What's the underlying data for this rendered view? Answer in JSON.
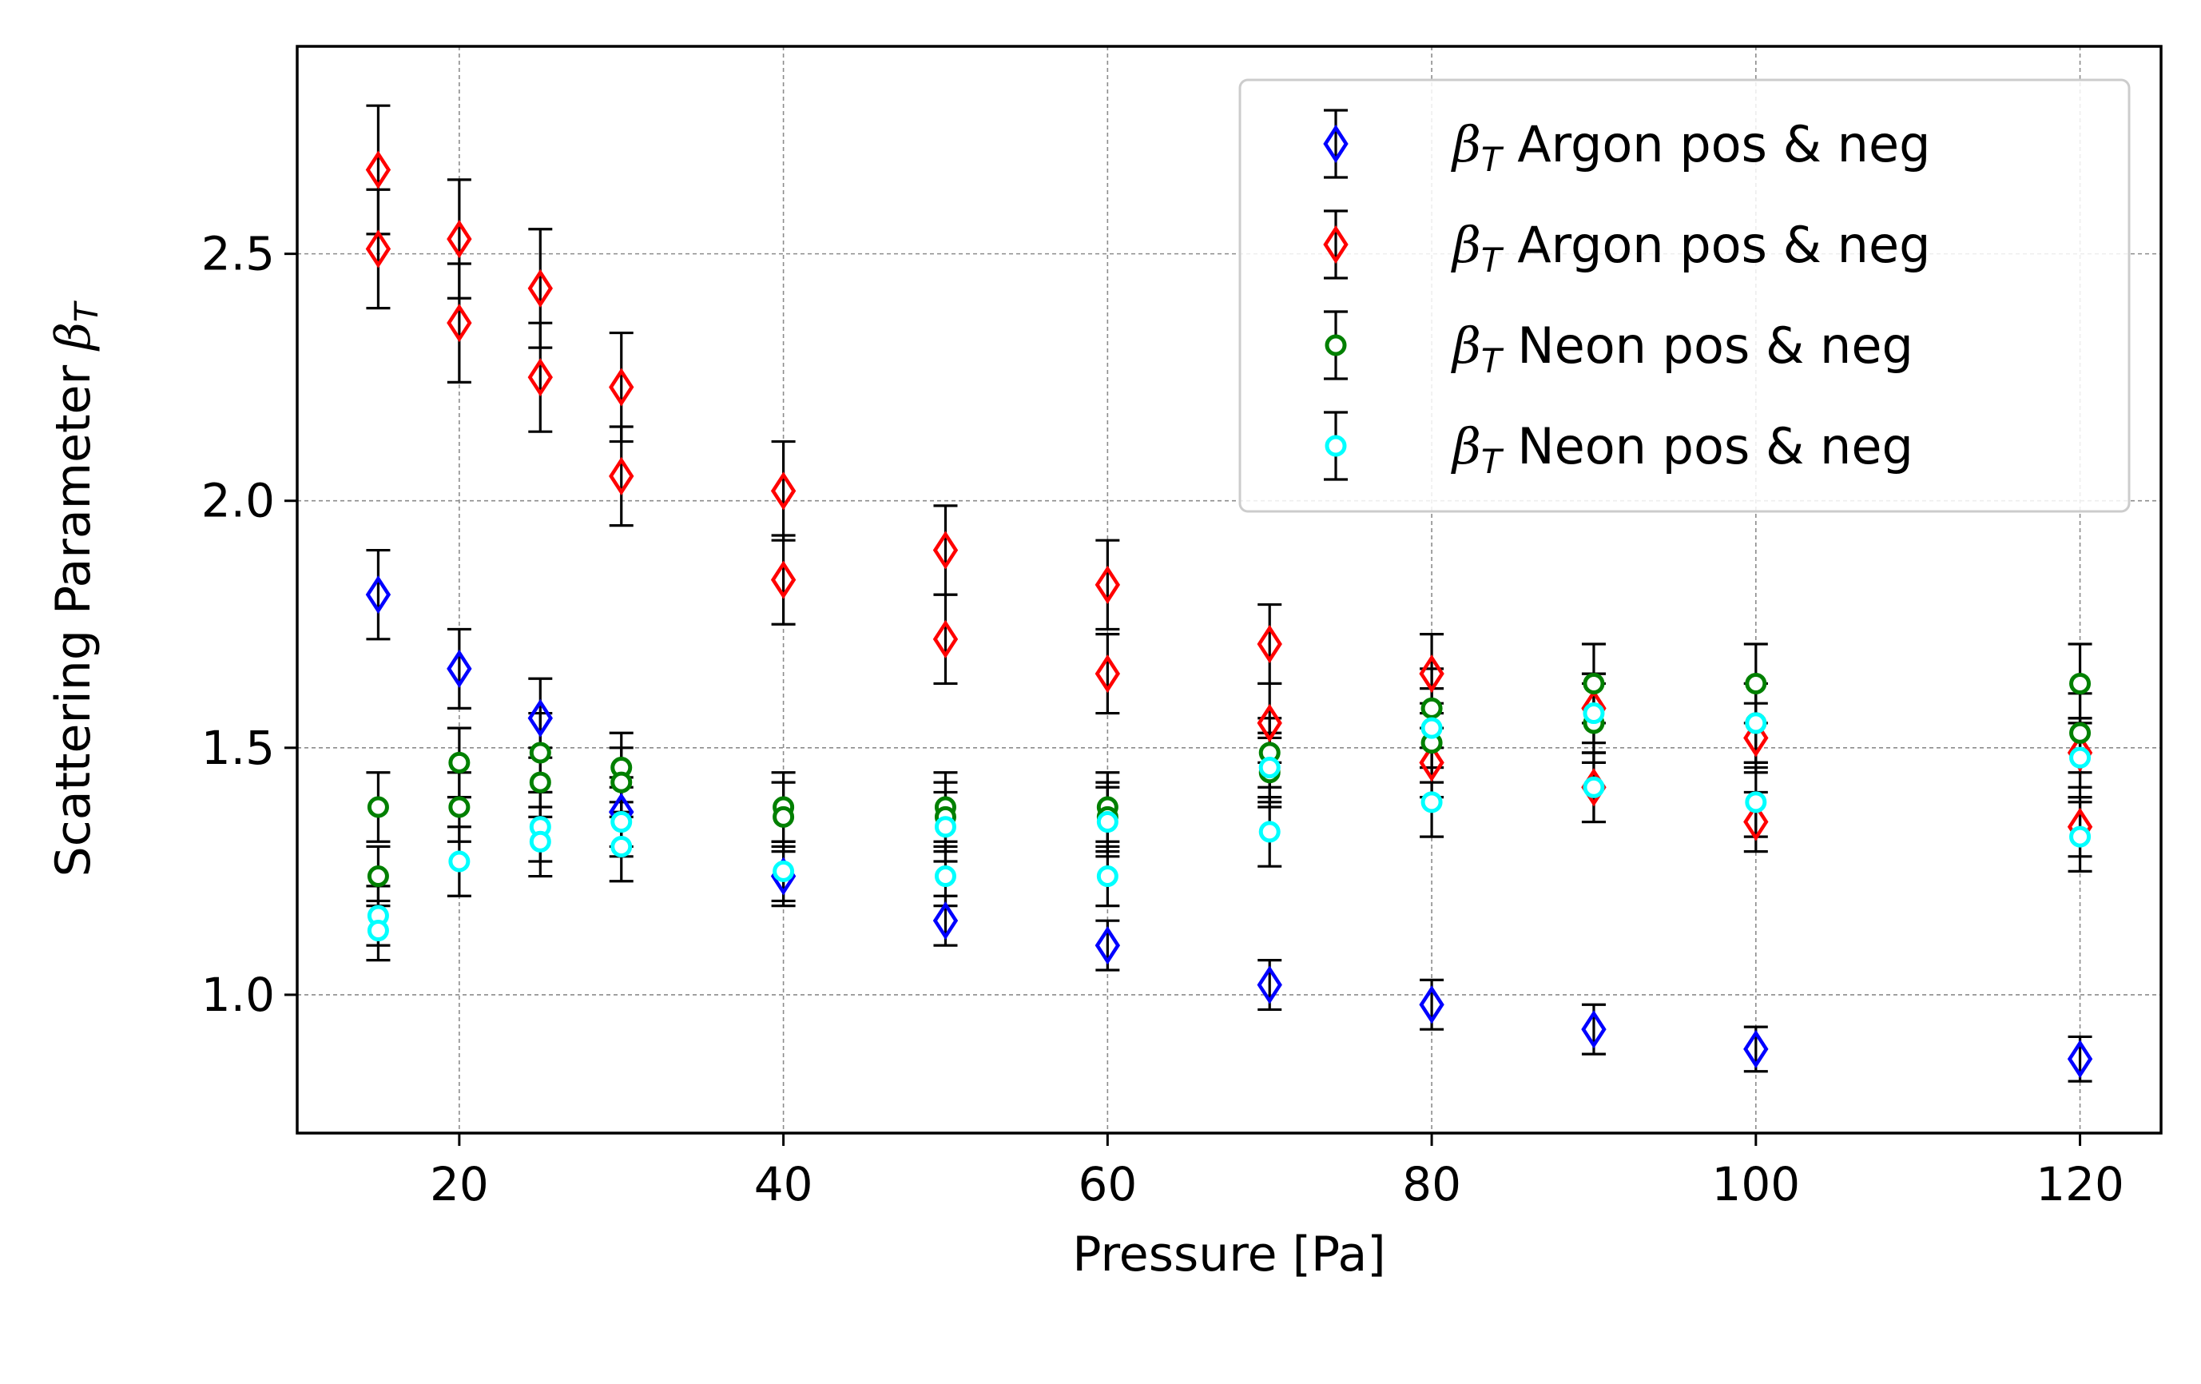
{
  "chart_data": {
    "type": "scatter",
    "xlabel": "Pressure [Pa]",
    "ylabel_text": "Scattering Parameter ",
    "ylabel_symbol": "β",
    "ylabel_sub": "T",
    "xlim": [
      10,
      125
    ],
    "ylim": [
      0.72,
      2.92
    ],
    "xticks": [
      20,
      40,
      60,
      80,
      100,
      120
    ],
    "yticks": [
      1.0,
      1.5,
      2.0,
      2.5
    ],
    "xtick_labels": [
      "20",
      "40",
      "60",
      "80",
      "100",
      "120"
    ],
    "ytick_labels": [
      "1.0",
      "1.5",
      "2.0",
      "2.5"
    ],
    "grid": true,
    "legend_position": "top-right",
    "series": [
      {
        "legend_symbol": "β",
        "legend_sub": "T",
        "name": "Argon pos & neg",
        "color": "#0000ff",
        "marker": "diamond",
        "x": [
          15,
          20,
          25,
          30,
          40,
          50,
          60,
          70,
          80,
          90,
          100,
          120
        ],
        "y": [
          1.81,
          1.66,
          1.56,
          1.37,
          1.24,
          1.15,
          1.1,
          1.02,
          0.98,
          0.93,
          0.89,
          0.87
        ],
        "err": [
          0.09,
          0.08,
          0.08,
          0.07,
          0.06,
          0.05,
          0.05,
          0.05,
          0.05,
          0.05,
          0.045,
          0.045
        ]
      },
      {
        "legend_symbol": "β",
        "legend_sub": "T",
        "name": "Argon pos & neg",
        "color": "#ff0000",
        "marker": "diamond",
        "x": [
          15,
          15,
          20,
          20,
          25,
          25,
          30,
          30,
          40,
          40,
          50,
          50,
          60,
          60,
          70,
          70,
          80,
          80,
          90,
          90,
          100,
          100,
          120,
          120
        ],
        "y": [
          2.67,
          2.51,
          2.53,
          2.36,
          2.43,
          2.25,
          2.23,
          2.05,
          2.02,
          1.84,
          1.9,
          1.72,
          1.83,
          1.65,
          1.71,
          1.55,
          1.65,
          1.47,
          1.58,
          1.42,
          1.52,
          1.35,
          1.49,
          1.34
        ],
        "err": [
          0.13,
          0.12,
          0.12,
          0.12,
          0.12,
          0.11,
          0.11,
          0.1,
          0.1,
          0.09,
          0.09,
          0.09,
          0.09,
          0.08,
          0.08,
          0.08,
          0.08,
          0.07,
          0.07,
          0.07,
          0.07,
          0.06,
          0.07,
          0.06
        ]
      },
      {
        "legend_symbol": "β",
        "legend_sub": "T",
        "name": "Neon pos & neg",
        "color": "#008000",
        "marker": "circle",
        "x": [
          15,
          15,
          20,
          20,
          25,
          25,
          30,
          30,
          40,
          40,
          50,
          50,
          60,
          60,
          70,
          70,
          80,
          80,
          90,
          90,
          100,
          100,
          120,
          120
        ],
        "y": [
          1.38,
          1.24,
          1.47,
          1.38,
          1.49,
          1.43,
          1.46,
          1.43,
          1.38,
          1.36,
          1.38,
          1.36,
          1.38,
          1.36,
          1.49,
          1.45,
          1.58,
          1.51,
          1.63,
          1.55,
          1.63,
          1.55,
          1.63,
          1.53
        ],
        "err": [
          0.07,
          0.06,
          0.07,
          0.07,
          0.08,
          0.07,
          0.07,
          0.07,
          0.07,
          0.07,
          0.07,
          0.07,
          0.07,
          0.07,
          0.07,
          0.07,
          0.08,
          0.08,
          0.08,
          0.08,
          0.08,
          0.08,
          0.08,
          0.08
        ]
      },
      {
        "legend_symbol": "β",
        "legend_sub": "T",
        "name": "Neon pos & neg",
        "color": "#00ffff",
        "marker": "circle",
        "x": [
          15,
          15,
          20,
          25,
          25,
          30,
          30,
          40,
          50,
          50,
          60,
          60,
          70,
          70,
          80,
          80,
          90,
          90,
          100,
          100,
          120,
          120
        ],
        "y": [
          1.16,
          1.13,
          1.27,
          1.34,
          1.31,
          1.35,
          1.3,
          1.25,
          1.34,
          1.24,
          1.35,
          1.24,
          1.46,
          1.33,
          1.54,
          1.39,
          1.57,
          1.42,
          1.55,
          1.39,
          1.48,
          1.32
        ],
        "err": [
          0.06,
          0.06,
          0.07,
          0.07,
          0.07,
          0.07,
          0.07,
          0.06,
          0.07,
          0.06,
          0.07,
          0.06,
          0.07,
          0.07,
          0.08,
          0.07,
          0.08,
          0.07,
          0.08,
          0.07,
          0.08,
          0.07
        ]
      }
    ]
  }
}
